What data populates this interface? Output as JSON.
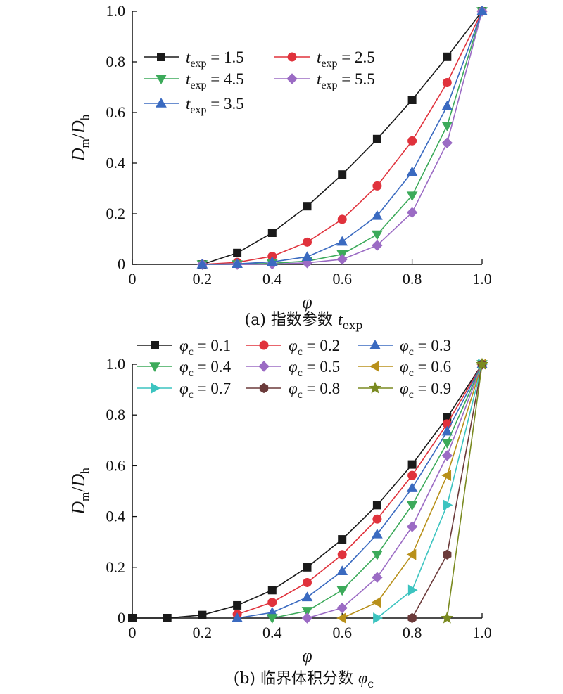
{
  "chart_data": [
    {
      "type": "line",
      "caption": {
        "label": "(a) 指数参数 ",
        "sym": "t",
        "sub": "exp"
      },
      "xlabel": "φ",
      "ylabel": {
        "main": "D",
        "sub1": "m",
        "slash": "/",
        "main2": "D",
        "sub2": "h"
      },
      "xlim": [
        0,
        1.0
      ],
      "ylim": [
        0,
        1.0
      ],
      "xticks": [
        "0",
        "0.2",
        "0.4",
        "0.6",
        "0.8",
        "1.0"
      ],
      "yticks": [
        "0",
        "0.2",
        "0.4",
        "0.6",
        "0.8",
        "1.0"
      ],
      "legend_placement": "top-left",
      "x": [
        0.2,
        0.3,
        0.4,
        0.5,
        0.6,
        0.7,
        0.8,
        0.9,
        1.0
      ],
      "series": [
        {
          "sym": "t",
          "sub": "exp",
          "eq": " = 1.5",
          "color": "#1a1a1a",
          "marker": "square",
          "values": [
            0,
            0.045,
            0.125,
            0.23,
            0.355,
            0.495,
            0.65,
            0.82,
            1.0
          ]
        },
        {
          "sym": "t",
          "sub": "exp",
          "eq": " = 2.5",
          "color": "#e0323c",
          "marker": "circle",
          "values": [
            0,
            0.008,
            0.032,
            0.088,
            0.178,
            0.31,
            0.488,
            0.718,
            1.0
          ]
        },
        {
          "sym": "t",
          "sub": "exp",
          "eq": " = 4.5",
          "color": "#3caa5a",
          "marker": "tri-down",
          "values": [
            0,
            0.0,
            0.004,
            0.013,
            0.04,
            0.118,
            0.272,
            0.548,
            1.0
          ]
        },
        {
          "sym": "t",
          "sub": "exp",
          "eq": " = 5.5",
          "color": "#9b6bc4",
          "marker": "diamond",
          "values": [
            0,
            0.0,
            0.001,
            0.006,
            0.02,
            0.075,
            0.205,
            0.48,
            1.0
          ]
        },
        {
          "sym": "t",
          "sub": "exp",
          "eq": " = 3.5",
          "color": "#3a6ac0",
          "marker": "tri-up",
          "values": [
            0,
            0.002,
            0.01,
            0.03,
            0.09,
            0.192,
            0.365,
            0.625,
            1.0
          ]
        }
      ]
    },
    {
      "type": "line",
      "caption": {
        "label": "(b) 临界体积分数 ",
        "sym": "φ",
        "sub": "c"
      },
      "xlabel": "φ",
      "ylabel": {
        "main": "D",
        "sub1": "m",
        "slash": "/",
        "main2": "D",
        "sub2": "h"
      },
      "xlim": [
        0,
        1.0
      ],
      "ylim": [
        0,
        1.0
      ],
      "xticks": [
        "0",
        "0.2",
        "0.4",
        "0.6",
        "0.8",
        "1.0"
      ],
      "yticks": [
        "0",
        "0.2",
        "0.4",
        "0.6",
        "0.8",
        "1.0"
      ],
      "legend_placement": "top",
      "series": [
        {
          "sym": "φ",
          "sub": "c",
          "eq": " = 0.1",
          "color": "#1a1a1a",
          "marker": "square",
          "x": [
            0,
            0.1,
            0.2,
            0.3,
            0.4,
            0.5,
            0.6,
            0.7,
            0.8,
            0.9,
            1.0
          ],
          "values": [
            0,
            0,
            0.012,
            0.05,
            0.11,
            0.2,
            0.31,
            0.445,
            0.605,
            0.79,
            1.0
          ]
        },
        {
          "sym": "φ",
          "sub": "c",
          "eq": " = 0.2",
          "color": "#e0323c",
          "marker": "circle",
          "x": [
            0.3,
            0.4,
            0.5,
            0.6,
            0.7,
            0.8,
            0.9,
            1.0
          ],
          "values": [
            0.015,
            0.062,
            0.14,
            0.25,
            0.39,
            0.562,
            0.765,
            1.0
          ]
        },
        {
          "sym": "φ",
          "sub": "c",
          "eq": " = 0.3",
          "color": "#3a6ac0",
          "marker": "tri-up",
          "x": [
            0.3,
            0.4,
            0.5,
            0.6,
            0.7,
            0.8,
            0.9,
            1.0
          ],
          "values": [
            0,
            0.022,
            0.082,
            0.185,
            0.33,
            0.512,
            0.735,
            1.0
          ]
        },
        {
          "sym": "φ",
          "sub": "c",
          "eq": " = 0.4",
          "color": "#3caa5a",
          "marker": "tri-down",
          "x": [
            0.4,
            0.5,
            0.6,
            0.7,
            0.8,
            0.9,
            1.0
          ],
          "values": [
            0,
            0.028,
            0.11,
            0.25,
            0.445,
            0.69,
            1.0
          ]
        },
        {
          "sym": "φ",
          "sub": "c",
          "eq": " = 0.5",
          "color": "#9b6bc4",
          "marker": "diamond",
          "x": [
            0.5,
            0.6,
            0.7,
            0.8,
            0.9,
            1.0
          ],
          "values": [
            0,
            0.04,
            0.16,
            0.36,
            0.64,
            1.0
          ]
        },
        {
          "sym": "φ",
          "sub": "c",
          "eq": " = 0.6",
          "color": "#b8901a",
          "marker": "tri-left",
          "x": [
            0.6,
            0.7,
            0.8,
            0.9,
            1.0
          ],
          "values": [
            0,
            0.062,
            0.25,
            0.562,
            1.0
          ]
        },
        {
          "sym": "φ",
          "sub": "c",
          "eq": " = 0.7",
          "color": "#3cc4c0",
          "marker": "tri-right",
          "x": [
            0.7,
            0.8,
            0.9,
            1.0
          ],
          "values": [
            0,
            0.11,
            0.445,
            1.0
          ]
        },
        {
          "sym": "φ",
          "sub": "c",
          "eq": " = 0.8",
          "color": "#6b3a3a",
          "marker": "hexagon",
          "x": [
            0.8,
            0.9,
            1.0
          ],
          "values": [
            0,
            0.25,
            1.0
          ]
        },
        {
          "sym": "φ",
          "sub": "c",
          "eq": " = 0.9",
          "color": "#7a8a20",
          "marker": "star",
          "x": [
            0.9,
            1.0
          ],
          "values": [
            0,
            1.0
          ]
        }
      ]
    }
  ]
}
